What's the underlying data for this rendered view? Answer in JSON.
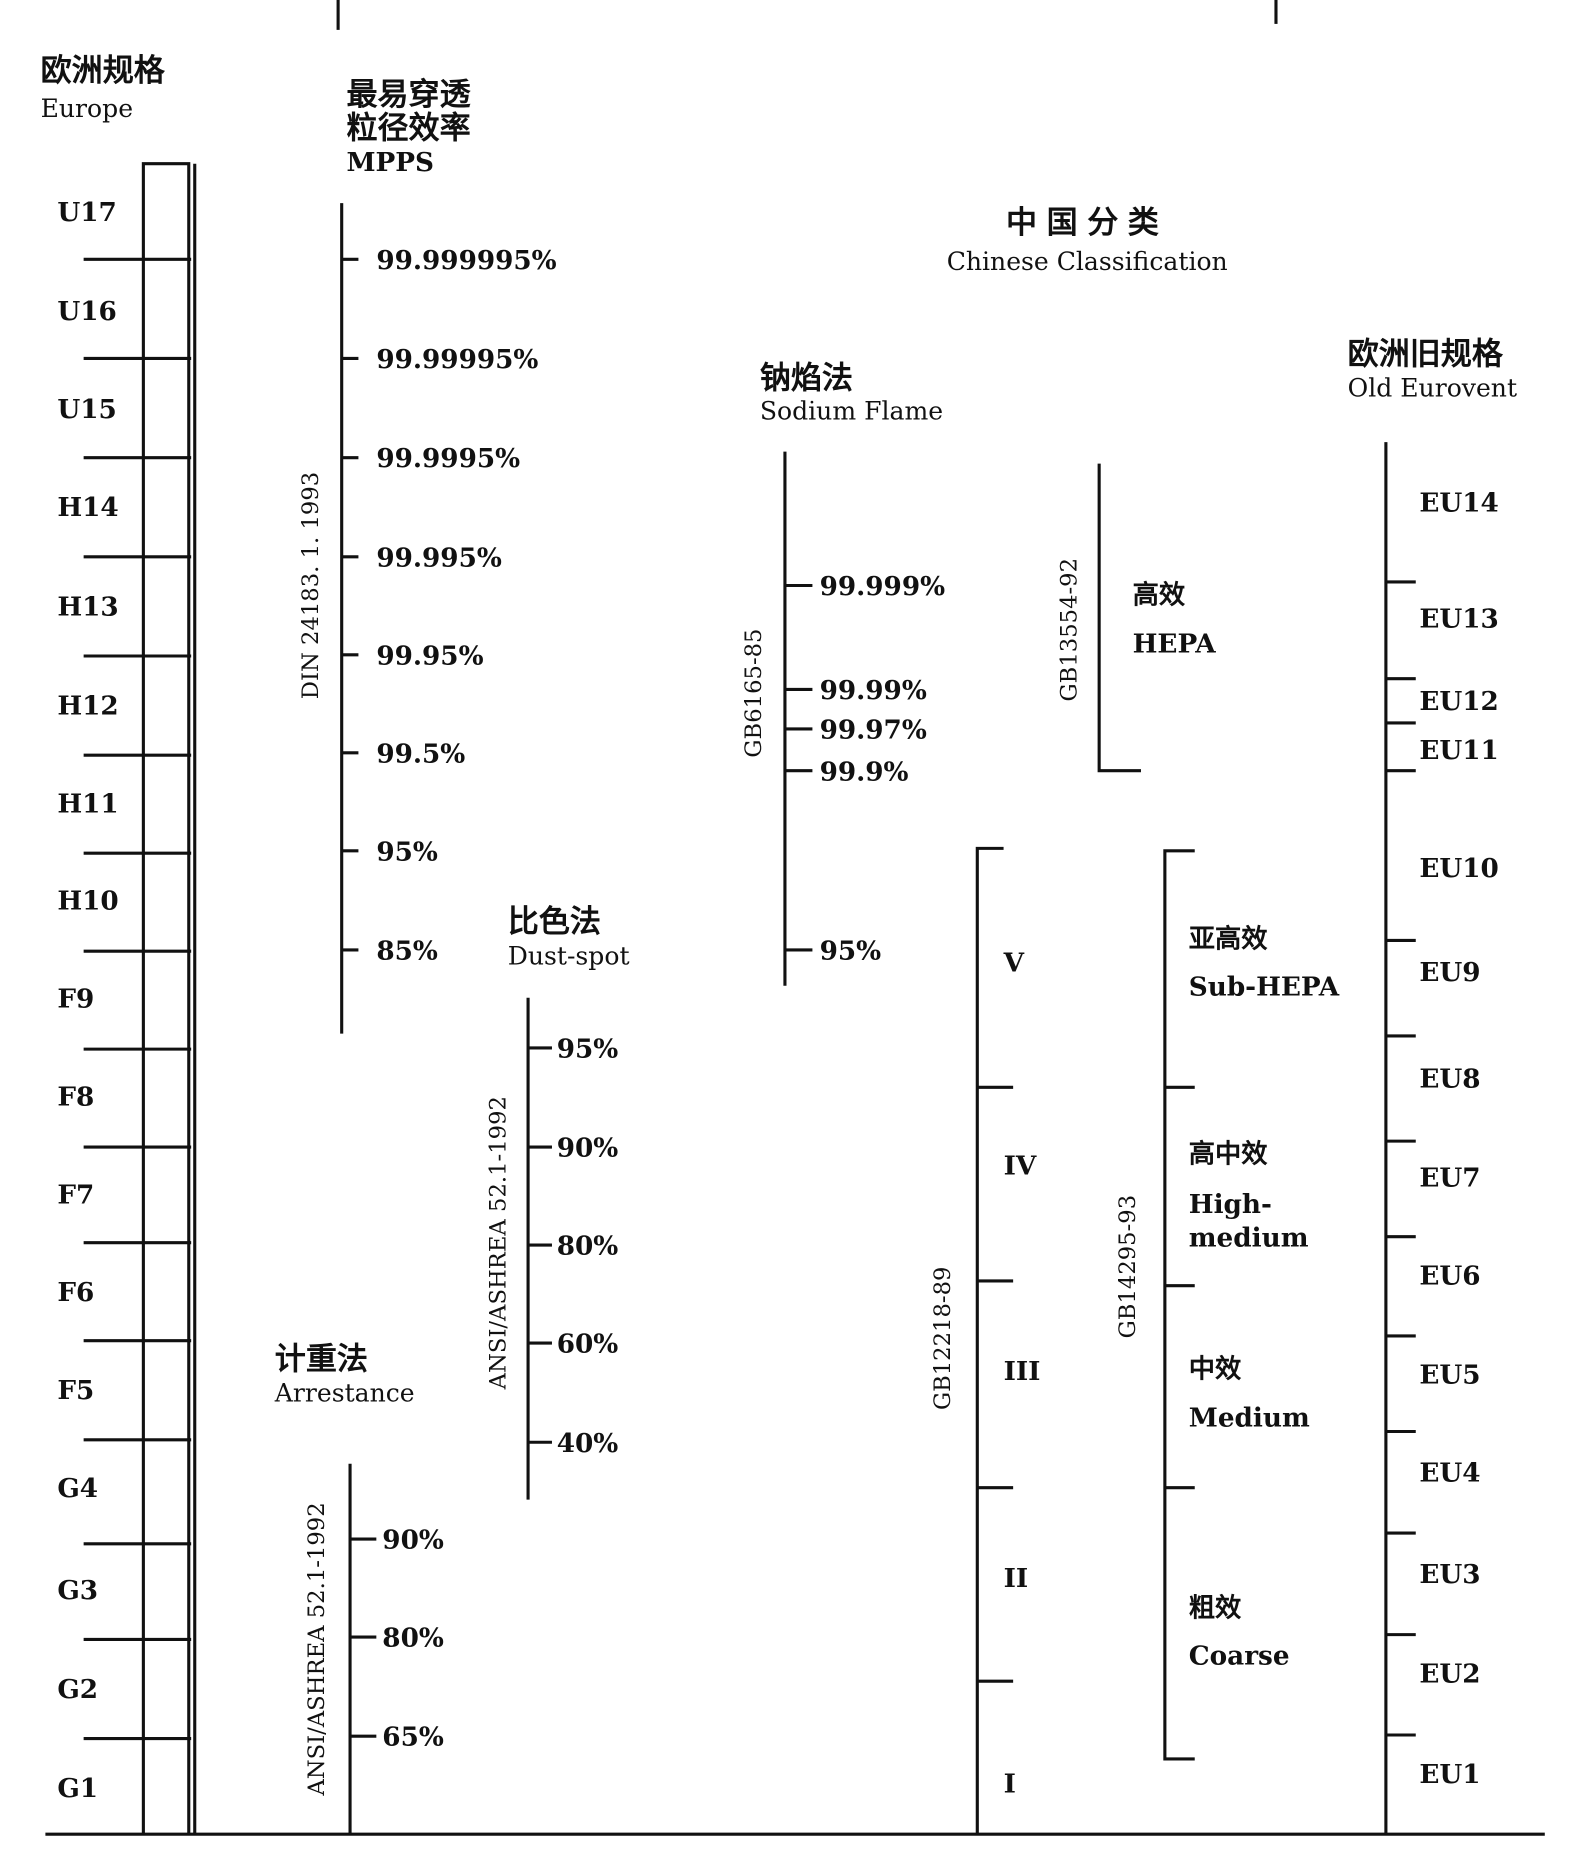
{
  "europe": {
    "title_cn": "欧洲规格",
    "title_en": "Europe",
    "classes": [
      "U17",
      "U16",
      "U15",
      "H14",
      "H13",
      "H12",
      "H11",
      "H10",
      "F9",
      "F8",
      "F7",
      "F6",
      "F5",
      "G4",
      "G3",
      "G2",
      "G1"
    ]
  },
  "mpps": {
    "title_cn_1": "最易穿透",
    "title_cn_2": "粒径效率",
    "title_en": "MPPS",
    "standard": "DIN 24183. 1. 1993",
    "ticks": [
      "99.999995%",
      "99.99995%",
      "99.9995%",
      "99.995%",
      "99.95%",
      "99.5%",
      "95%",
      "85%"
    ]
  },
  "dust_spot": {
    "title_cn": "比色法",
    "title_en": "Dust-spot",
    "standard": "ANSI/ASHREA 52.1-1992",
    "ticks": [
      "95%",
      "90%",
      "80%",
      "60%",
      "40%"
    ]
  },
  "arrestance": {
    "title_cn": "计重法",
    "title_en": "Arrestance",
    "standard": "ANSI/ASHREA 52.1-1992",
    "ticks": [
      "90%",
      "80%",
      "65%"
    ]
  },
  "sodium_flame": {
    "title_cn": "钠焰法",
    "title_en": "Sodium Flame",
    "standard": "GB6165-85",
    "ticks": [
      "99.999%",
      "99.99%",
      "99.97%",
      "99.9%",
      "95%"
    ]
  },
  "chinese": {
    "title_cn": "中国分类",
    "title_en": "Chinese Classification",
    "hepa": {
      "standard": "GB13554-92",
      "label_cn": "高效",
      "label_en": "HEPA"
    },
    "gb12218": {
      "standard": "GB12218-89",
      "grades": [
        "V",
        "IV",
        "III",
        "II",
        "I"
      ]
    },
    "gb14295": {
      "standard": "GB14295-93",
      "grades": [
        {
          "cn": "亚高效",
          "en": "Sub-HEPA"
        },
        {
          "cn": "高中效",
          "en": "High-",
          "en2": "medium"
        },
        {
          "cn": "中效",
          "en": "Medium"
        },
        {
          "cn": "粗效",
          "en": "Coarse"
        }
      ]
    }
  },
  "old_eurovent": {
    "title_cn": "欧洲旧规格",
    "title_en": "Old Eurovent",
    "classes": [
      "EU14",
      "EU13",
      "EU12",
      "EU11",
      "EU10",
      "EU9",
      "EU8",
      "EU7",
      "EU6",
      "EU5",
      "EU4",
      "EU3",
      "EU2",
      "EU1"
    ]
  }
}
